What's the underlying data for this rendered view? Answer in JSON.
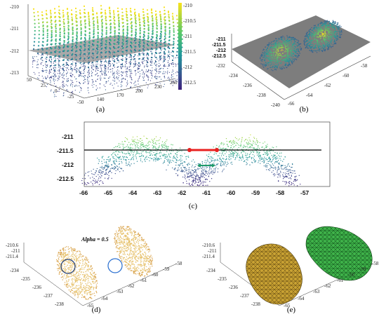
{
  "captions": {
    "a": "(a)",
    "b": "(b)",
    "c": "(c)",
    "d": "(d)",
    "e": "(e)"
  },
  "panel_a": {
    "z_ticks": [
      "-210",
      "-211",
      "-212",
      "-213"
    ],
    "y_ticks": [
      "50",
      "25",
      "0",
      "-25",
      "-50"
    ],
    "x_ticks": [
      "140",
      "170",
      "200",
      "230",
      "260"
    ],
    "colorbar_ticks": [
      "-210",
      "-210.5",
      "-211",
      "-211.5",
      "-212",
      "-212.5"
    ]
  },
  "panel_b": {
    "z_ticks": [
      "-211",
      "-211.5",
      "-212",
      "-212.5"
    ],
    "y_ticks": [
      "-232",
      "-234",
      "-236",
      "-238",
      "-240"
    ],
    "x_ticks": [
      "-66",
      "-64",
      "-62",
      "-60",
      "-58"
    ]
  },
  "panel_c": {
    "y_ticks": [
      "-211",
      "-211.5",
      "-212",
      "-212.5"
    ],
    "x_ticks": [
      "-66",
      "-65",
      "-64",
      "-63",
      "-62",
      "-61",
      "-60",
      "-59",
      "-58",
      "-57"
    ]
  },
  "panel_d": {
    "annotation": "Alpha = 0.5",
    "z_ticks": [
      "-210.6",
      "-211",
      "-211.4"
    ],
    "y_ticks": [
      "-234",
      "-235",
      "-236",
      "-237",
      "-238"
    ],
    "x_ticks": [
      "-65",
      "-64",
      "-63",
      "-62",
      "-61",
      "-60",
      "-59",
      "-58"
    ]
  },
  "panel_e": {
    "z_ticks": [
      "-210.6",
      "-211",
      "-211.4"
    ],
    "y_ticks": [
      "-234",
      "-235",
      "-236",
      "-237",
      "-238"
    ],
    "x_ticks": [
      "-65",
      "-64",
      "-63",
      "-62",
      "-61",
      "-60",
      "-59",
      "-58"
    ]
  },
  "colors": {
    "high": "#f2e21a",
    "mid": "#2bb7a3",
    "low": "#3c2c8c",
    "plane": "#8c8c8c",
    "red_marker": "#e8201f",
    "green_marker": "#1f9a6a",
    "mesh_gold": "#c9a233",
    "mesh_green": "#3fb34a"
  }
}
